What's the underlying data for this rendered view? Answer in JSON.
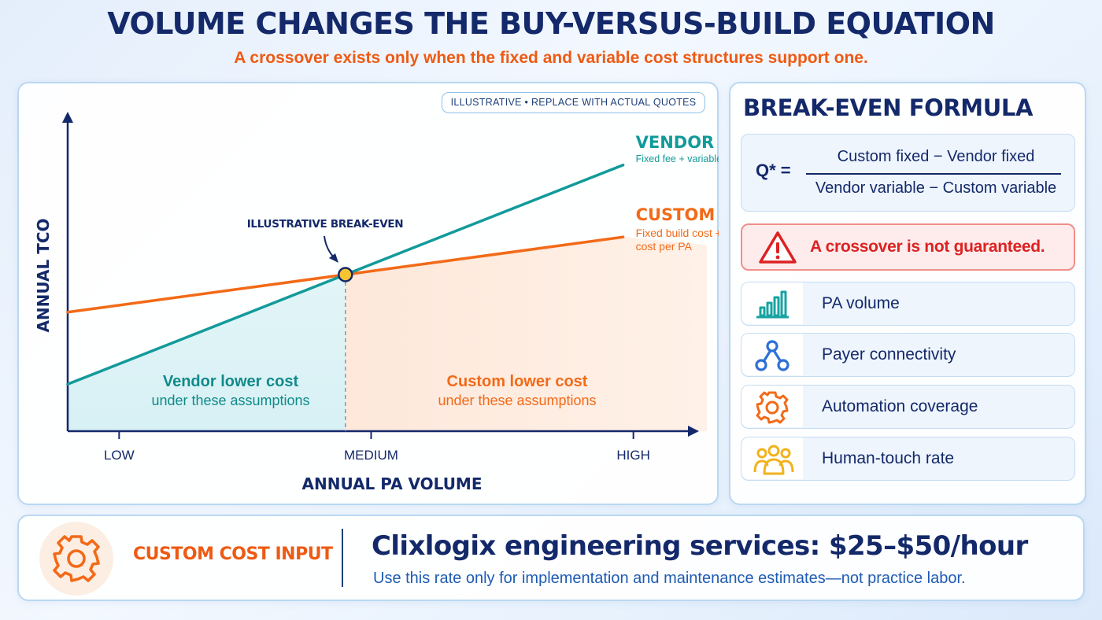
{
  "title": "VOLUME CHANGES THE BUY-VERSUS-BUILD EQUATION",
  "subtitle": "A crossover exists only when the fixed and variable cost structures support one.",
  "chart_data": {
    "type": "line",
    "badge": "ILLUSTRATIVE • REPLACE WITH ACTUAL QUOTES",
    "ylabel": "ANNUAL TCO",
    "xlabel": "ANNUAL PA VOLUME",
    "x_ticks": [
      "LOW",
      "MEDIUM",
      "HIGH"
    ],
    "series": [
      {
        "name": "VENDOR",
        "description": "Fixed fee + variable cost per PA",
        "color": "#129a9a",
        "points": [
          [
            0,
            15
          ],
          [
            1.08,
            50
          ],
          [
            2.16,
            85
          ]
        ]
      },
      {
        "name": "CUSTOM",
        "description_lines": [
          "Fixed build cost + variable",
          "cost per PA"
        ],
        "color": "#f26a18",
        "points": [
          [
            0,
            38
          ],
          [
            1.08,
            50
          ],
          [
            2.16,
            62
          ]
        ]
      }
    ],
    "break_even_label": "ILLUSTRATIVE BREAK-EVEN",
    "break_even_color": "#f6c433",
    "regions": {
      "left": {
        "title": "Vendor lower cost",
        "note": "under these assumptions"
      },
      "right": {
        "title": "Custom lower cost",
        "note": "under these assumptions"
      }
    }
  },
  "formula": {
    "title": "BREAK-EVEN FORMULA",
    "q_label": "Q* =",
    "numerator": "Custom fixed − Vendor fixed",
    "denominator": "Vendor variable − Custom variable"
  },
  "warning": {
    "icon": "warning-triangle-icon",
    "text": "A crossover is not guaranteed."
  },
  "factors": [
    {
      "icon": "bar-chart-icon",
      "label": "PA volume",
      "color": "#17a3a3"
    },
    {
      "icon": "network-icon",
      "label": "Payer connectivity",
      "color": "#2e6fd6"
    },
    {
      "icon": "gear-icon",
      "label": "Automation coverage",
      "color": "#f26a18"
    },
    {
      "icon": "people-icon",
      "label": "Human-touch rate",
      "color": "#f2b21c"
    }
  ],
  "bottom": {
    "icon": "gear-icon",
    "label": "CUSTOM COST INPUT",
    "headline": "Clixlogix engineering services: $25–$50/hour",
    "note": "Use this rate only for implementation and maintenance estimates—not practice labor."
  }
}
